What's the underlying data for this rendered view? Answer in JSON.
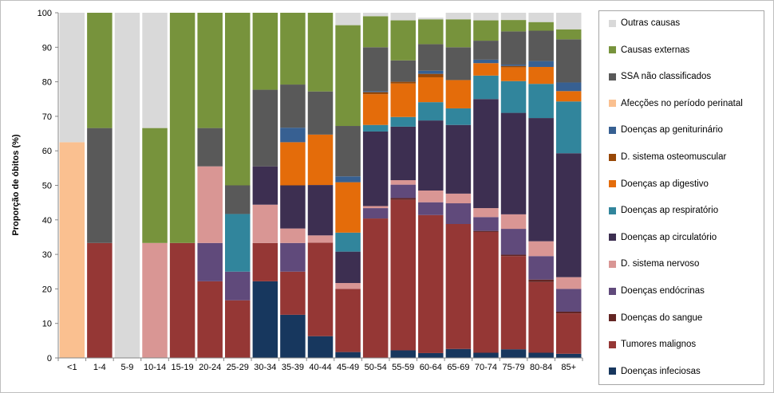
{
  "chart_data": {
    "type": "bar",
    "stacked": true,
    "ylabel": "Proporção de óbitos (%)",
    "xlabel": "",
    "ylim": [
      0,
      100
    ],
    "yticks": [
      0,
      10,
      20,
      30,
      40,
      50,
      60,
      70,
      80,
      90,
      100
    ],
    "grid": false,
    "legend_position": "right",
    "categories": [
      "<1",
      "1-4",
      "5-9",
      "10-14",
      "15-19",
      "20-24",
      "25-29",
      "30-34",
      "35-39",
      "40-44",
      "45-49",
      "50-54",
      "55-59",
      "60-64",
      "65-69",
      "70-74",
      "75-79",
      "80-84",
      "85+"
    ],
    "series": [
      {
        "name": "Doenças infeciosas",
        "color": "#17375e",
        "values": [
          0,
          0,
          0,
          0,
          0,
          0,
          0,
          22.2,
          12.5,
          6.3,
          1.7,
          0,
          2.2,
          1.4,
          2.6,
          1.5,
          2.5,
          1.5,
          1.2
        ]
      },
      {
        "name": "Tumores malignos",
        "color": "#953735",
        "values": [
          0,
          33.3,
          0,
          0,
          33.3,
          22.2,
          16.7,
          11.1,
          12.5,
          27.1,
          18.3,
          40.4,
          43.6,
          40.0,
          36.2,
          35.0,
          27.0,
          20.5,
          11.7
        ]
      },
      {
        "name": "Doenças do sangue",
        "color": "#632523",
        "values": [
          0,
          0,
          0,
          0,
          0,
          0,
          0,
          0,
          0,
          0,
          0,
          0,
          0.5,
          0,
          0,
          0.3,
          0.4,
          0.7,
          0.5
        ]
      },
      {
        "name": "Doenças endócrinas",
        "color": "#604a7b",
        "values": [
          0,
          0,
          0,
          0,
          0,
          11.1,
          8.3,
          0,
          8.3,
          0,
          0,
          3.0,
          3.9,
          3.7,
          6.0,
          4.0,
          7.5,
          6.8,
          6.6
        ]
      },
      {
        "name": "D. sistema nervoso",
        "color": "#d99694",
        "values": [
          0,
          0,
          0,
          33.3,
          0,
          22.2,
          0,
          11.1,
          4.2,
          2.1,
          1.7,
          0.6,
          1.3,
          3.4,
          2.8,
          2.6,
          4.2,
          4.3,
          3.4
        ]
      },
      {
        "name": "Doenças ap circulatório",
        "color": "#3d2f51",
        "values": [
          0,
          0,
          0,
          0,
          0,
          0,
          0,
          11.1,
          12.5,
          14.6,
          9.1,
          21.6,
          15.5,
          20.3,
          19.9,
          31.6,
          29.4,
          35.7,
          35.9
        ]
      },
      {
        "name": "Doenças ap respiratório",
        "color": "#31859c",
        "values": [
          0,
          0,
          0,
          0,
          0,
          0,
          16.7,
          0,
          0,
          0,
          5.5,
          1.9,
          2.8,
          5.3,
          4.8,
          6.8,
          9.2,
          9.9,
          15.0
        ]
      },
      {
        "name": "Doenças ap digestivo",
        "color": "#e46c0a",
        "values": [
          0,
          0,
          0,
          0,
          0,
          0,
          0,
          0,
          12.5,
          14.6,
          14.6,
          8.9,
          9.7,
          7.2,
          8.2,
          3.6,
          4.0,
          4.9,
          3.0
        ]
      },
      {
        "name": "D. sistema osteomuscular",
        "color": "#984807",
        "values": [
          0,
          0,
          0,
          0,
          0,
          0,
          0,
          0,
          0,
          0,
          0,
          0.6,
          0.5,
          1.0,
          0,
          0,
          0.4,
          0,
          0
        ]
      },
      {
        "name": "Doenças ap genitourinário",
        "color": "#376092",
        "values": [
          0,
          0,
          0,
          0,
          0,
          0,
          0,
          0,
          4.2,
          0,
          1.7,
          0.3,
          0,
          0.9,
          0,
          1.0,
          0.4,
          1.7,
          2.5
        ]
      },
      {
        "name": "Afecções no período perinatal",
        "color": "#fac090",
        "values": [
          62.5,
          0,
          0,
          0,
          0,
          0,
          0,
          0,
          0,
          0,
          0,
          0,
          0,
          0,
          0,
          0,
          0,
          0,
          0
        ]
      },
      {
        "name": "SSA não classificados",
        "color": "#595959",
        "values": [
          0,
          33.3,
          0,
          0,
          0,
          11.1,
          8.3,
          22.2,
          12.5,
          12.5,
          14.6,
          12.7,
          6.2,
          7.7,
          9.5,
          5.5,
          9.6,
          8.8,
          12.5
        ]
      },
      {
        "name": "Causas externas",
        "color": "#77933c",
        "values": [
          0,
          33.4,
          0,
          33.3,
          66.7,
          33.4,
          50.0,
          22.3,
          20.8,
          22.8,
          29.2,
          9.0,
          11.6,
          7.2,
          8.1,
          5.9,
          3.3,
          2.5,
          2.9
        ]
      },
      {
        "name": "Outras causas",
        "color": "#d9d9d9",
        "values": [
          37.5,
          0,
          100,
          33.4,
          0,
          0,
          0,
          0,
          0,
          0,
          3.6,
          1.0,
          2.2,
          0.5,
          1.9,
          2.2,
          2.1,
          2.7,
          4.8
        ]
      }
    ],
    "legend_order": [
      "Outras causas",
      "Causas externas",
      "SSA não classificados",
      "Afecções no período perinatal",
      "Doenças ap geniturinário",
      "D. sistema osteomuscular",
      "Doenças ap digestivo",
      "Doenças ap respiratório",
      "Doenças ap circulatório",
      "D. sistema nervoso",
      "Doenças endócrinas",
      "Doenças do sangue",
      "Tumores malignos",
      "Doenças infeciosas"
    ]
  }
}
